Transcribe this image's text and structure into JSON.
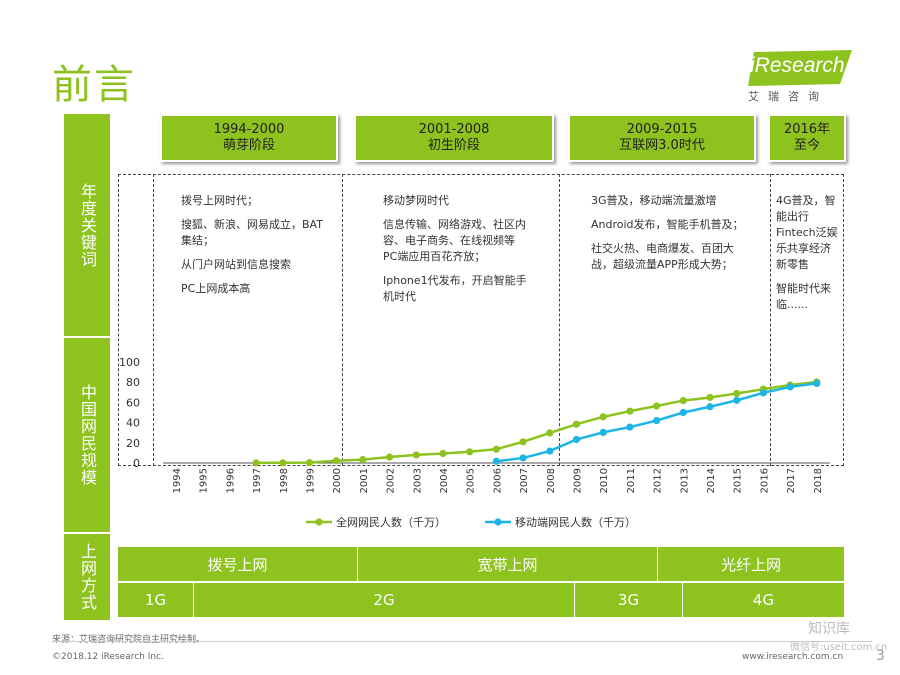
{
  "page": {
    "title": "前言",
    "page_number": "3"
  },
  "logo": {
    "text": "iResearch",
    "subtitle": "艾瑞咨询"
  },
  "sidebar": {
    "keywords_label": "年度关键词",
    "scale_label": "中国网民规模",
    "access_label": "上网方式"
  },
  "phases": [
    {
      "years": "1994-2000",
      "name": "萌芽阶段"
    },
    {
      "years": "2001-2008",
      "name": "初生阶段"
    },
    {
      "years": "2009-2015",
      "name": "互联网3.0时代"
    },
    {
      "years": "2016年",
      "name": "至今"
    }
  ],
  "keywords": [
    [
      "拨号上网时代；",
      "搜狐、新浪、网易成立，BAT集结；",
      "从门户网站到信息搜索",
      "PC上网成本高"
    ],
    [
      "移动梦网时代",
      "信息传输、网络游戏、社区内容、电子商务、在线视频等PC端应用百花齐放；",
      "Iphone1代发布，开启智能手机时代"
    ],
    [
      "3G普及，移动端流量激增",
      "Android发布，智能手机普及；",
      "社交火热、电商爆发、百团大战，超级流量APP形成大势；"
    ],
    [
      "4G普及，智能出行Fintech泛娱乐共享经济新零售",
      "智能时代来临......"
    ]
  ],
  "access": {
    "row1": [
      "拨号上网",
      "宽带上网",
      "光纤上网"
    ],
    "row2": [
      "1G",
      "2G",
      "3G",
      "4G"
    ]
  },
  "colors": {
    "accent": "#8dc21f",
    "mobile": "#1fb4e6"
  },
  "chart_data": {
    "type": "line",
    "x": [
      "1994",
      "1995",
      "1996",
      "1997",
      "1998",
      "1999",
      "2000",
      "2001",
      "2002",
      "2003",
      "2004",
      "2005",
      "2006",
      "2007",
      "2008",
      "2009",
      "2010",
      "2011",
      "2012",
      "2013",
      "2014",
      "2015",
      "2016",
      "2017",
      "2018"
    ],
    "ylim": [
      0,
      100
    ],
    "yticks": [
      "0",
      "20",
      "40",
      "60",
      "80",
      "100"
    ],
    "series": [
      {
        "name": "全网网民人数（千万）",
        "color": "#8dc21f",
        "values": [
          null,
          null,
          null,
          0.1,
          0.2,
          0.4,
          2.2,
          3.4,
          5.9,
          8,
          9.4,
          11.1,
          13.7,
          21,
          29.8,
          38.4,
          45.7,
          51.3,
          56.4,
          61.8,
          64.9,
          68.8,
          73.1,
          77.2,
          80.2
        ]
      },
      {
        "name": "移动端网民人数（千万）",
        "color": "#1fb4e6",
        "values": [
          null,
          null,
          null,
          null,
          null,
          null,
          null,
          null,
          null,
          null,
          null,
          null,
          1.7,
          5,
          11.8,
          23.3,
          30.3,
          35.6,
          42,
          50,
          55.7,
          62,
          69.5,
          75.3,
          78.8
        ]
      }
    ]
  },
  "footer": {
    "source": "来源：艾瑞咨询研究院自主研究绘制。",
    "copyright": "©2018.12 iResearch Inc.",
    "url": "www.iresearch.com.cn",
    "watermark1": "知识库",
    "watermark2": "微信号:useit.com.cn"
  }
}
